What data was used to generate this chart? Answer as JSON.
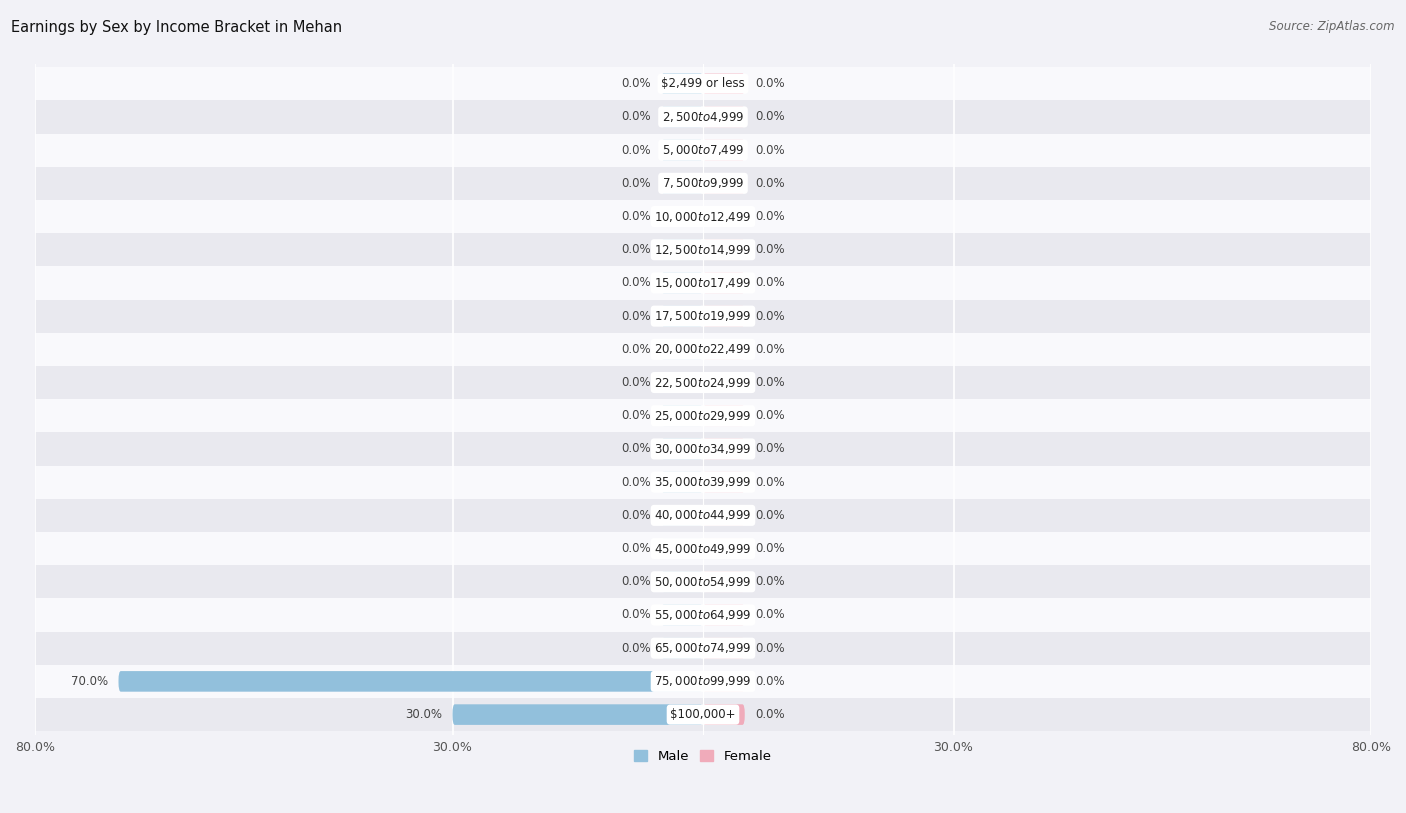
{
  "title": "Earnings by Sex by Income Bracket in Mehan",
  "source": "Source: ZipAtlas.com",
  "categories": [
    "$2,499 or less",
    "$2,500 to $4,999",
    "$5,000 to $7,499",
    "$7,500 to $9,999",
    "$10,000 to $12,499",
    "$12,500 to $14,999",
    "$15,000 to $17,499",
    "$17,500 to $19,999",
    "$20,000 to $22,499",
    "$22,500 to $24,999",
    "$25,000 to $29,999",
    "$30,000 to $34,999",
    "$35,000 to $39,999",
    "$40,000 to $44,999",
    "$45,000 to $49,999",
    "$50,000 to $54,999",
    "$55,000 to $64,999",
    "$65,000 to $74,999",
    "$75,000 to $99,999",
    "$100,000+"
  ],
  "male_values": [
    0.0,
    0.0,
    0.0,
    0.0,
    0.0,
    0.0,
    0.0,
    0.0,
    0.0,
    0.0,
    0.0,
    0.0,
    0.0,
    0.0,
    0.0,
    0.0,
    0.0,
    0.0,
    70.0,
    30.0
  ],
  "female_values": [
    0.0,
    0.0,
    0.0,
    0.0,
    0.0,
    0.0,
    0.0,
    0.0,
    0.0,
    0.0,
    0.0,
    0.0,
    0.0,
    0.0,
    0.0,
    0.0,
    0.0,
    0.0,
    0.0,
    0.0
  ],
  "male_color": "#92C0DC",
  "female_color": "#F0ABBA",
  "stub_size": 5.0,
  "xlim": 80.0,
  "background_color": "#f2f2f7",
  "row_light_color": "#f9f9fc",
  "row_dark_color": "#e9e9ef",
  "title_fontsize": 10.5,
  "source_fontsize": 8.5,
  "label_fontsize": 8.5,
  "value_fontsize": 8.5,
  "tick_fontsize": 9.0,
  "tick_positions": [
    -80,
    -30,
    0,
    30,
    80
  ],
  "tick_labels": [
    "80.0%",
    "30.0%",
    "",
    "30.0%",
    "80.0%"
  ]
}
